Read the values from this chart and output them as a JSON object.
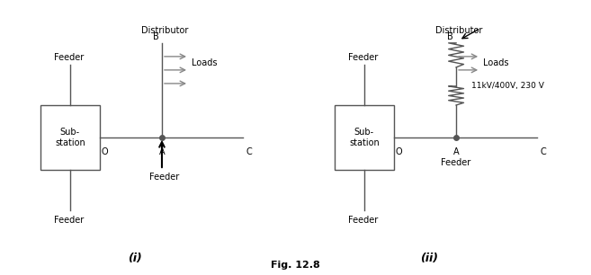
{
  "fig_title": "Fig. 12.8",
  "diagram_i_label": "(i)",
  "diagram_ii_label": "(ii)",
  "background_color": "#ffffff",
  "line_color": "#555555",
  "text_color": "#000000",
  "substation_label": "Sub-\nstation",
  "distributor_label": "Distributor",
  "loads_label": "Loads",
  "feeder_label": "Feeder",
  "transformer_label": "11kV/400V, 230 V",
  "point_O": "O",
  "point_A": "A",
  "point_B": "B",
  "point_C": "C"
}
